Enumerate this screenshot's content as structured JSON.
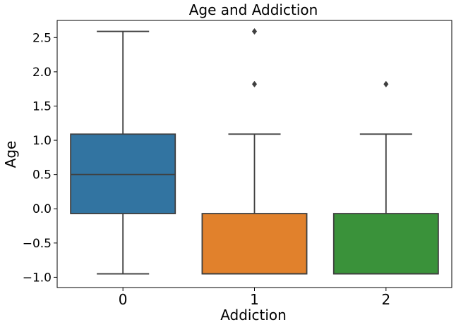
{
  "chart_data": {
    "type": "box",
    "title": "Age and Addiction",
    "xlabel": "Addiction",
    "ylabel": "Age",
    "categories": [
      "0",
      "1",
      "2"
    ],
    "ylim": [
      -1.15,
      2.75
    ],
    "yticks": [
      -1.0,
      -0.5,
      0.0,
      0.5,
      1.0,
      1.5,
      2.0,
      2.5
    ],
    "ytick_labels": [
      "−1.0",
      "−0.5",
      "0.0",
      "0.5",
      "1.0",
      "1.5",
      "2.0",
      "2.5"
    ],
    "grid": false,
    "boxes": [
      {
        "category": "0",
        "whisker_low": -0.95,
        "q1": -0.07,
        "median": 0.5,
        "q3": 1.09,
        "whisker_high": 2.59,
        "outliers": [],
        "color": "#3274a1"
      },
      {
        "category": "1",
        "whisker_low": -0.95,
        "q1": -0.95,
        "median": -0.95,
        "q3": -0.07,
        "whisker_high": 1.09,
        "outliers": [
          1.82,
          2.59
        ],
        "color": "#e1812c"
      },
      {
        "category": "2",
        "whisker_low": -0.95,
        "q1": -0.95,
        "median": -0.95,
        "q3": -0.07,
        "whisker_high": 1.09,
        "outliers": [
          1.82
        ],
        "color": "#3a923a"
      }
    ]
  }
}
